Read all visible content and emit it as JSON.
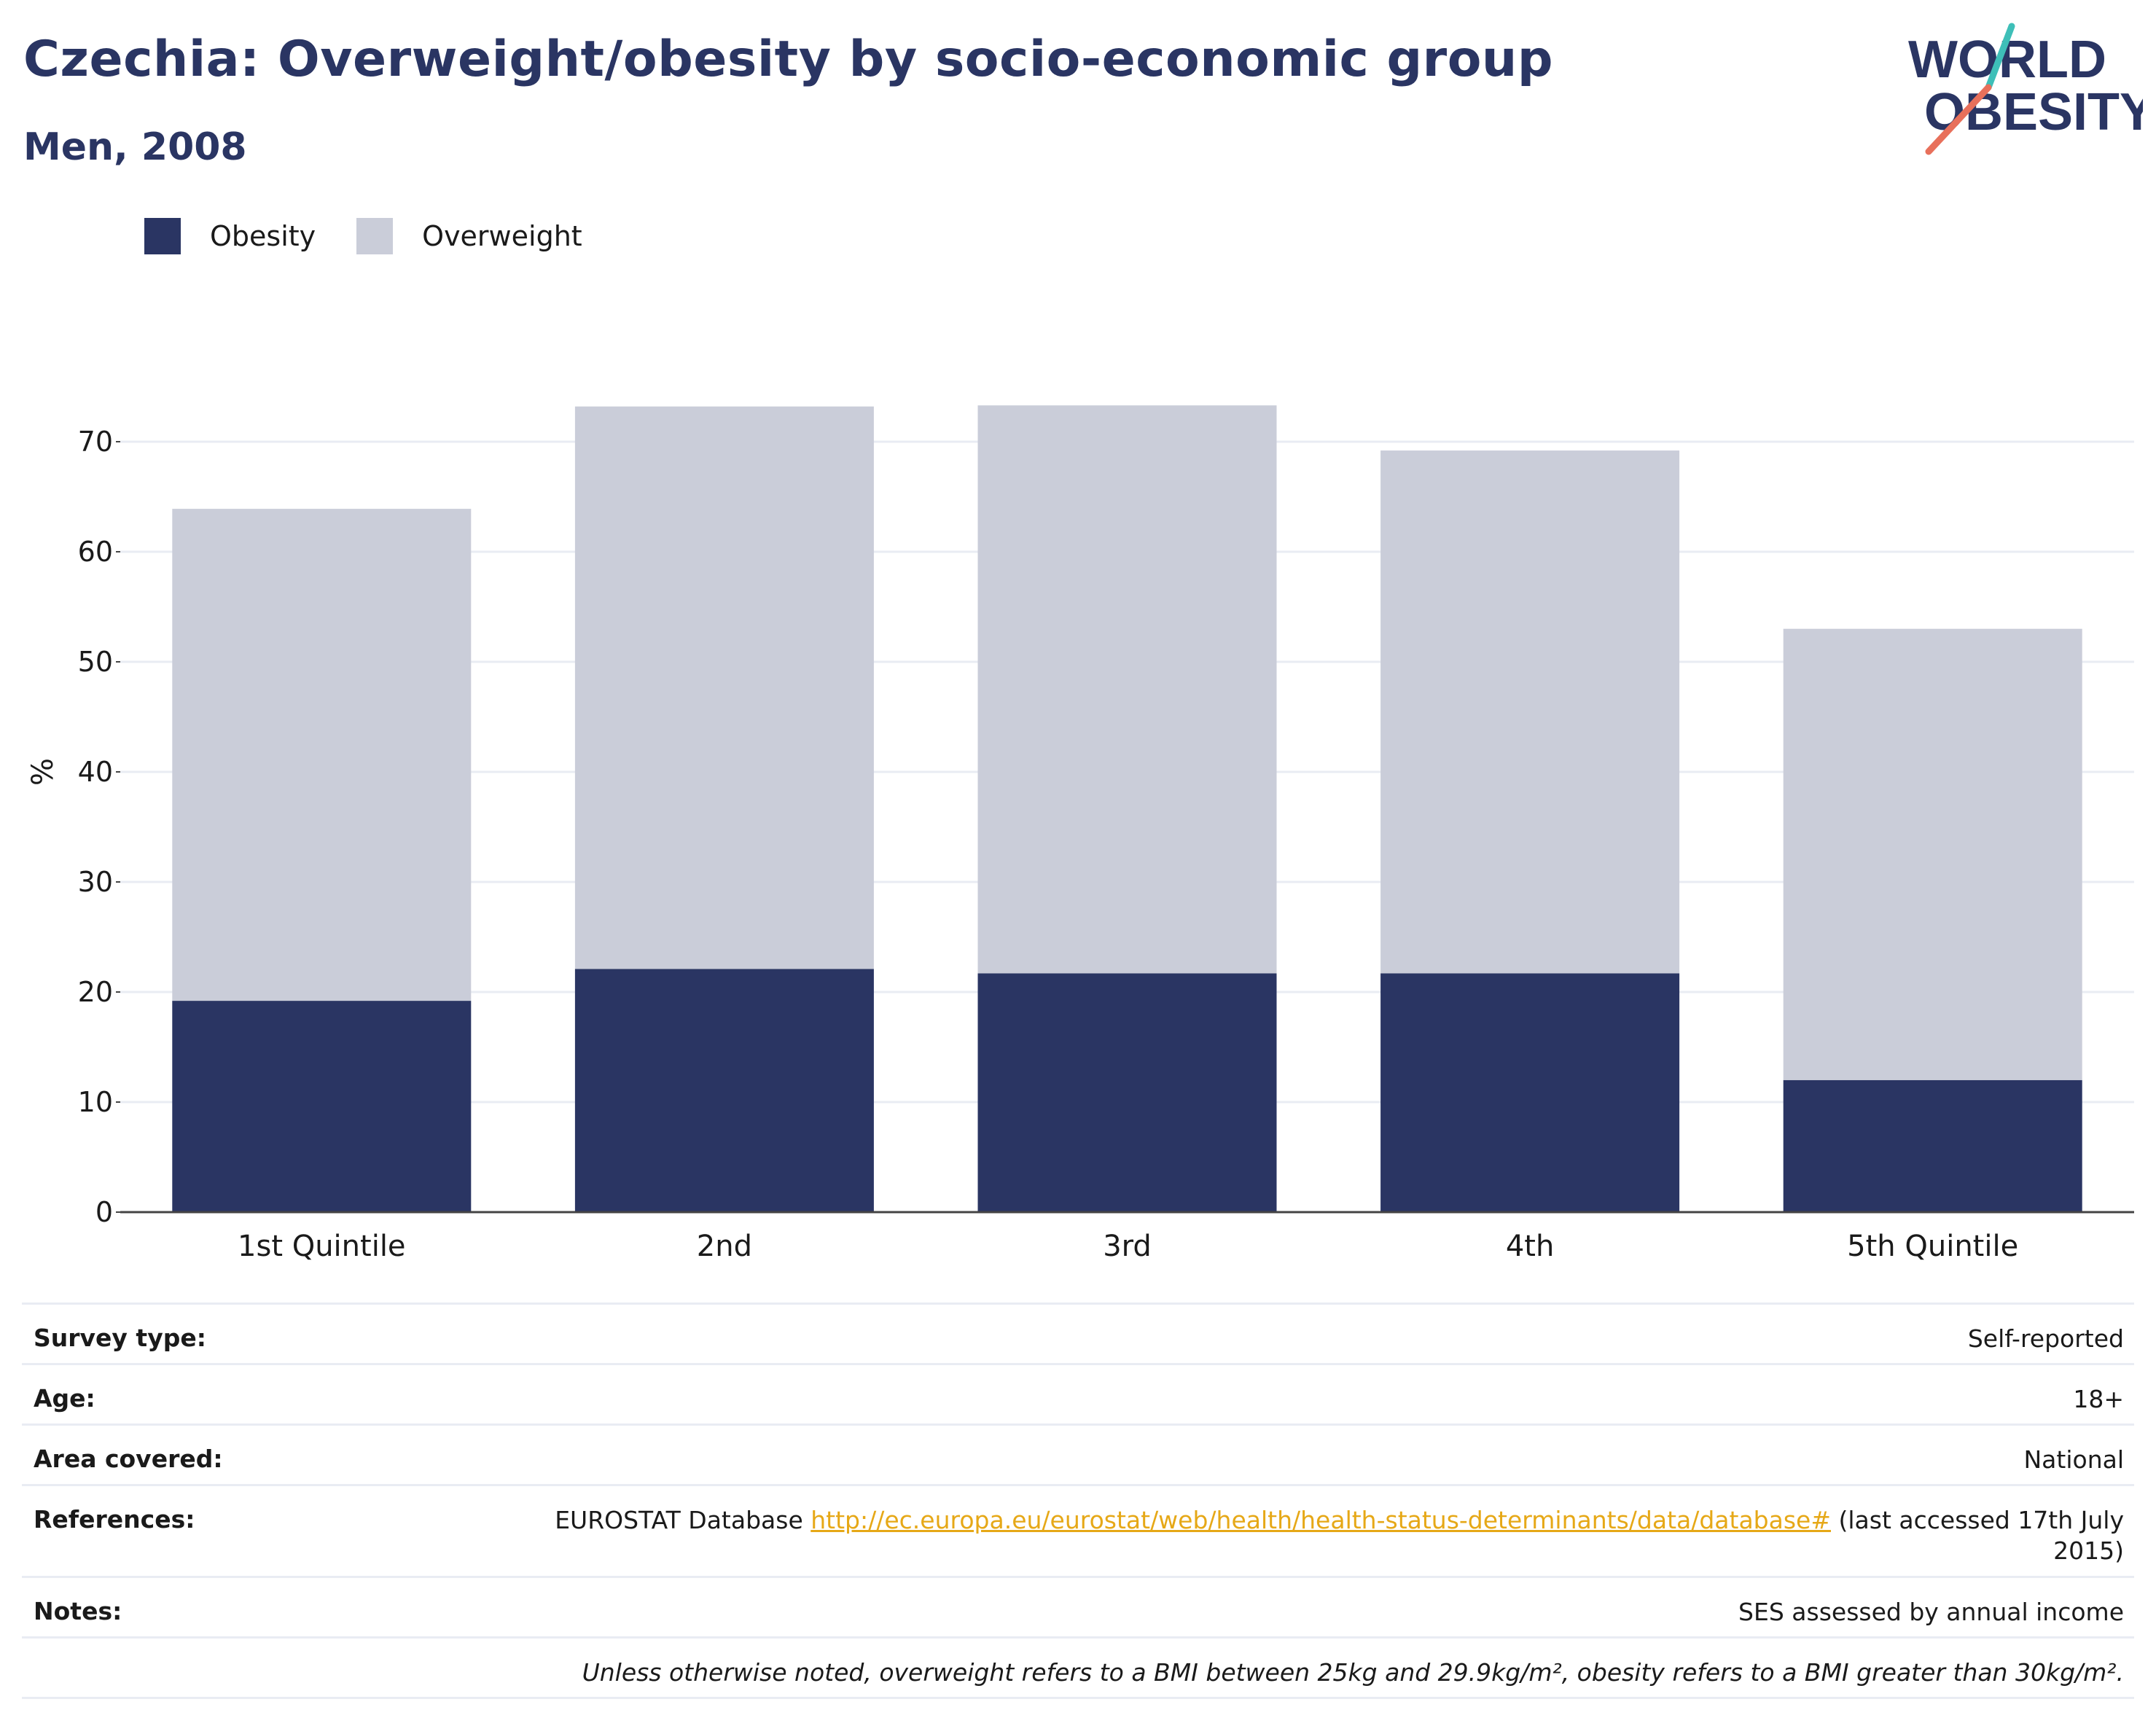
{
  "header": {
    "title": "Czechia: Overweight/obesity by socio-economic group",
    "subtitle": "Men, 2008"
  },
  "logo": {
    "line1": "WORLD",
    "line2": "OBESITY"
  },
  "colors": {
    "obesity": "#2a3563",
    "overweight": "#cacdd9",
    "text": "#1a1a1a",
    "grid": "#e9ecf3",
    "link": "#e6a817",
    "logo_teal": "#3ebfb8",
    "logo_coral": "#e8705b"
  },
  "legend": [
    {
      "label": "Obesity",
      "color": "#2a3563"
    },
    {
      "label": "Overweight",
      "color": "#cacdd9"
    }
  ],
  "chart_data": {
    "type": "bar",
    "stacked": true,
    "categories": [
      "1st Quintile",
      "2nd",
      "3rd",
      "4th",
      "5th Quintile"
    ],
    "series": [
      {
        "name": "Obesity",
        "values": [
          19.2,
          22.1,
          21.7,
          21.7,
          12.0
        ]
      },
      {
        "name": "Overweight",
        "values": [
          44.7,
          51.1,
          51.6,
          47.5,
          41.0
        ]
      }
    ],
    "ylabel": "%",
    "ylim": [
      0,
      80
    ],
    "yticks": [
      0,
      10,
      20,
      30,
      40,
      50,
      60,
      70
    ],
    "grid": true,
    "legend_position": "top-left"
  },
  "meta": {
    "survey_type": {
      "label": "Survey type:",
      "value": "Self-reported"
    },
    "age": {
      "label": "Age:",
      "value": "18+"
    },
    "area": {
      "label": "Area covered:",
      "value": "National"
    },
    "references": {
      "label": "References:",
      "prefix": "EUROSTAT Database ",
      "link": "http://ec.europa.eu/eurostat/web/health/health-status-determinants/data/database#",
      "suffix_line1": " (last accessed 17th July",
      "suffix_line2": "2015)"
    },
    "notes": {
      "label": "Notes:",
      "value": "SES assessed by annual income"
    },
    "footnote": "Unless otherwise noted, overweight refers to a BMI between 25kg and 29.9kg/m², obesity refers to a BMI greater than 30kg/m²."
  }
}
